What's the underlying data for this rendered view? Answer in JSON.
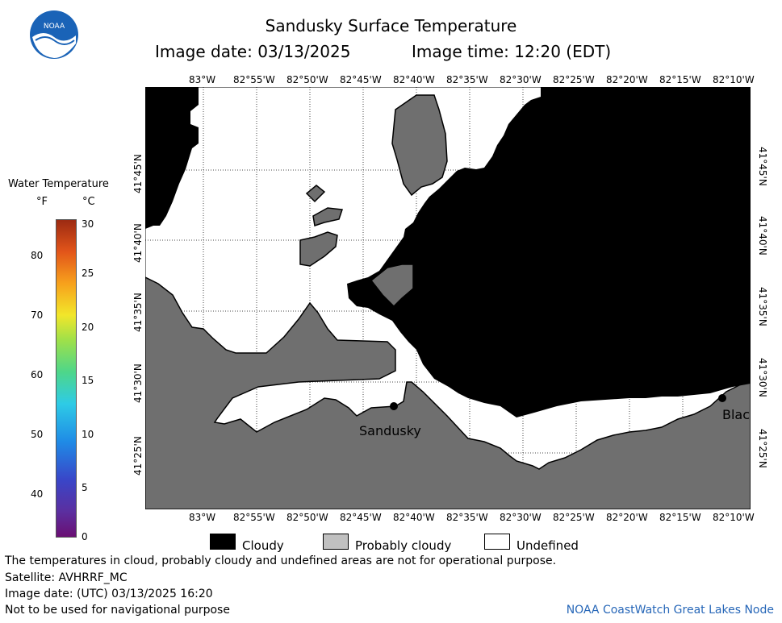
{
  "header": {
    "title": "Sandusky Surface Temperature",
    "image_date_label": "Image date: 03/13/2025",
    "image_time_label": "Image time: 12:20 (EDT)"
  },
  "logo": {
    "text": "NOAA"
  },
  "color_scale": {
    "title": "Water Temperature",
    "f_unit": "°F",
    "c_unit": "°C",
    "f_ticks": [
      "80",
      "70",
      "60",
      "50",
      "40"
    ],
    "c_ticks": [
      "30",
      "25",
      "20",
      "15",
      "10",
      "5",
      "0"
    ]
  },
  "map": {
    "lon_labels": [
      "83°W",
      "82°55'W",
      "82°50'W",
      "82°45'W",
      "82°40'W",
      "82°35'W",
      "82°30'W",
      "82°25'W",
      "82°20'W",
      "82°15'W",
      "82°10'W"
    ],
    "lat_labels": [
      "41°45'N",
      "41°40'N",
      "41°35'N",
      "41°30'N",
      "41°25'N"
    ],
    "places": [
      {
        "name": "Sandusky"
      },
      {
        "name": "Blac"
      }
    ],
    "colors": {
      "cloudy": "#000000",
      "probably_cloudy": "#6f6f6f",
      "undefined": "#ffffff",
      "land": "#6f6f6f"
    }
  },
  "legend": {
    "cloudy": "Cloudy",
    "probably_cloudy": "Probably cloudy",
    "undefined": "Undefined"
  },
  "footer": {
    "line1": "The temperatures in cloud, probably cloudy and undefined areas are not for operational purpose.",
    "line2": "Satellite: AVHRRF_MC",
    "line3": "Image date: (UTC) 03/13/2025  16:20",
    "line4": "Not to be used for navigational purpose",
    "credit": "NOAA CoastWatch Great Lakes Node"
  }
}
